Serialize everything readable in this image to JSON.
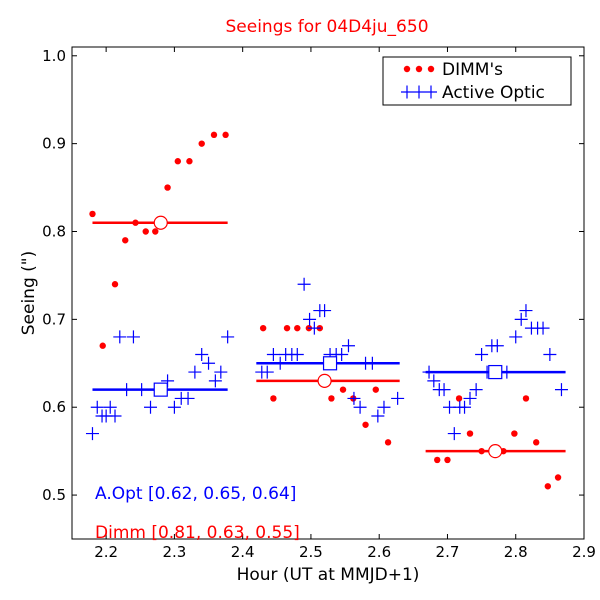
{
  "chart_data": {
    "type": "scatter",
    "title": "Seeings for 04D4ju_650",
    "xlabel": "Hour (UT at MMJD+1)",
    "ylabel": "Seeing (\")",
    "xlim": [
      2.15,
      2.9
    ],
    "ylim": [
      0.45,
      1.01
    ],
    "x_ticks": [
      2.2,
      2.3,
      2.4,
      2.5,
      2.6,
      2.7,
      2.8,
      2.9
    ],
    "x_tick_labels": [
      "2.2",
      "2.3",
      "2.4",
      "2.5",
      "2.6",
      "2.7",
      "2.8",
      "2.9"
    ],
    "y_ticks": [
      0.5,
      0.6,
      0.7,
      0.8,
      0.9,
      1.0
    ],
    "y_tick_labels": [
      "0.5",
      "0.6",
      "0.7",
      "0.8",
      "0.9",
      "1.0"
    ],
    "legend": {
      "position": "top-right",
      "entries": [
        {
          "label": "DIMM's",
          "series": "dimm"
        },
        {
          "label": "Active Optic",
          "series": "aopt"
        }
      ]
    },
    "colors": {
      "dimm": "#ff0000",
      "aopt": "#0000ff",
      "title": "#ff0000"
    },
    "series": [
      {
        "name": "DIMM's",
        "key": "dimm",
        "marker": "dot",
        "points": [
          [
            2.18,
            0.82
          ],
          [
            2.195,
            0.67
          ],
          [
            2.213,
            0.74
          ],
          [
            2.228,
            0.79
          ],
          [
            2.243,
            0.81
          ],
          [
            2.258,
            0.8
          ],
          [
            2.272,
            0.8
          ],
          [
            2.29,
            0.85
          ],
          [
            2.305,
            0.88
          ],
          [
            2.322,
            0.88
          ],
          [
            2.34,
            0.9
          ],
          [
            2.358,
            0.91
          ],
          [
            2.375,
            0.91
          ],
          [
            2.43,
            0.69
          ],
          [
            2.445,
            0.61
          ],
          [
            2.465,
            0.69
          ],
          [
            2.48,
            0.69
          ],
          [
            2.497,
            0.69
          ],
          [
            2.513,
            0.69
          ],
          [
            2.53,
            0.61
          ],
          [
            2.547,
            0.62
          ],
          [
            2.562,
            0.61
          ],
          [
            2.58,
            0.58
          ],
          [
            2.595,
            0.62
          ],
          [
            2.613,
            0.56
          ],
          [
            2.685,
            0.54
          ],
          [
            2.7,
            0.54
          ],
          [
            2.717,
            0.61
          ],
          [
            2.733,
            0.57
          ],
          [
            2.75,
            0.55
          ],
          [
            2.765,
            0.55
          ],
          [
            2.782,
            0.55
          ],
          [
            2.798,
            0.57
          ],
          [
            2.815,
            0.61
          ],
          [
            2.83,
            0.56
          ],
          [
            2.847,
            0.51
          ],
          [
            2.862,
            0.52
          ]
        ]
      },
      {
        "name": "Active Optic",
        "key": "aopt",
        "marker": "plus",
        "points": [
          [
            2.18,
            0.57
          ],
          [
            2.187,
            0.6
          ],
          [
            2.194,
            0.59
          ],
          [
            2.2,
            0.59
          ],
          [
            2.206,
            0.6
          ],
          [
            2.213,
            0.59
          ],
          [
            2.22,
            0.68
          ],
          [
            2.23,
            0.62
          ],
          [
            2.24,
            0.68
          ],
          [
            2.252,
            0.62
          ],
          [
            2.265,
            0.6
          ],
          [
            2.278,
            0.62
          ],
          [
            2.29,
            0.63
          ],
          [
            2.3,
            0.6
          ],
          [
            2.31,
            0.61
          ],
          [
            2.32,
            0.61
          ],
          [
            2.33,
            0.64
          ],
          [
            2.34,
            0.66
          ],
          [
            2.35,
            0.65
          ],
          [
            2.36,
            0.63
          ],
          [
            2.368,
            0.64
          ],
          [
            2.378,
            0.68
          ],
          [
            2.428,
            0.64
          ],
          [
            2.436,
            0.64
          ],
          [
            2.445,
            0.66
          ],
          [
            2.455,
            0.65
          ],
          [
            2.463,
            0.66
          ],
          [
            2.472,
            0.66
          ],
          [
            2.48,
            0.66
          ],
          [
            2.49,
            0.74
          ],
          [
            2.498,
            0.7
          ],
          [
            2.505,
            0.69
          ],
          [
            2.513,
            0.71
          ],
          [
            2.52,
            0.71
          ],
          [
            2.528,
            0.66
          ],
          [
            2.537,
            0.66
          ],
          [
            2.545,
            0.66
          ],
          [
            2.555,
            0.67
          ],
          [
            2.563,
            0.61
          ],
          [
            2.572,
            0.6
          ],
          [
            2.58,
            0.65
          ],
          [
            2.59,
            0.65
          ],
          [
            2.598,
            0.59
          ],
          [
            2.607,
            0.6
          ],
          [
            2.627,
            0.61
          ],
          [
            2.673,
            0.64
          ],
          [
            2.68,
            0.63
          ],
          [
            2.688,
            0.62
          ],
          [
            2.695,
            0.62
          ],
          [
            2.703,
            0.6
          ],
          [
            2.71,
            0.57
          ],
          [
            2.718,
            0.6
          ],
          [
            2.725,
            0.6
          ],
          [
            2.733,
            0.61
          ],
          [
            2.742,
            0.62
          ],
          [
            2.75,
            0.66
          ],
          [
            2.758,
            0.64
          ],
          [
            2.765,
            0.67
          ],
          [
            2.773,
            0.67
          ],
          [
            2.787,
            0.64
          ],
          [
            2.8,
            0.68
          ],
          [
            2.808,
            0.7
          ],
          [
            2.815,
            0.71
          ],
          [
            2.823,
            0.69
          ],
          [
            2.832,
            0.69
          ],
          [
            2.84,
            0.69
          ],
          [
            2.85,
            0.66
          ],
          [
            2.867,
            0.62
          ]
        ]
      }
    ],
    "mean_lines": [
      {
        "series": "dimm",
        "x_start": 2.18,
        "x_end": 2.378,
        "value": 0.81,
        "marker_x": 2.28
      },
      {
        "series": "aopt",
        "x_start": 2.18,
        "x_end": 2.378,
        "value": 0.62,
        "marker_x": 2.28
      },
      {
        "series": "aopt",
        "x_start": 2.42,
        "x_end": 2.63,
        "value": 0.65,
        "marker_x": 2.528
      },
      {
        "series": "dimm",
        "x_start": 2.42,
        "x_end": 2.63,
        "value": 0.63,
        "marker_x": 2.52
      },
      {
        "series": "aopt",
        "x_start": 2.668,
        "x_end": 2.873,
        "value": 0.64,
        "marker_x": 2.77
      },
      {
        "series": "dimm",
        "x_start": 2.668,
        "x_end": 2.873,
        "value": 0.55,
        "marker_x": 2.77
      }
    ],
    "annotations": [
      {
        "key": "aopt_summary",
        "text": "A.Opt [0.62, 0.65, 0.64]",
        "series": "aopt"
      },
      {
        "key": "dimm_summary",
        "text": "Dimm [0.81, 0.63, 0.55]",
        "series": "dimm"
      }
    ]
  }
}
